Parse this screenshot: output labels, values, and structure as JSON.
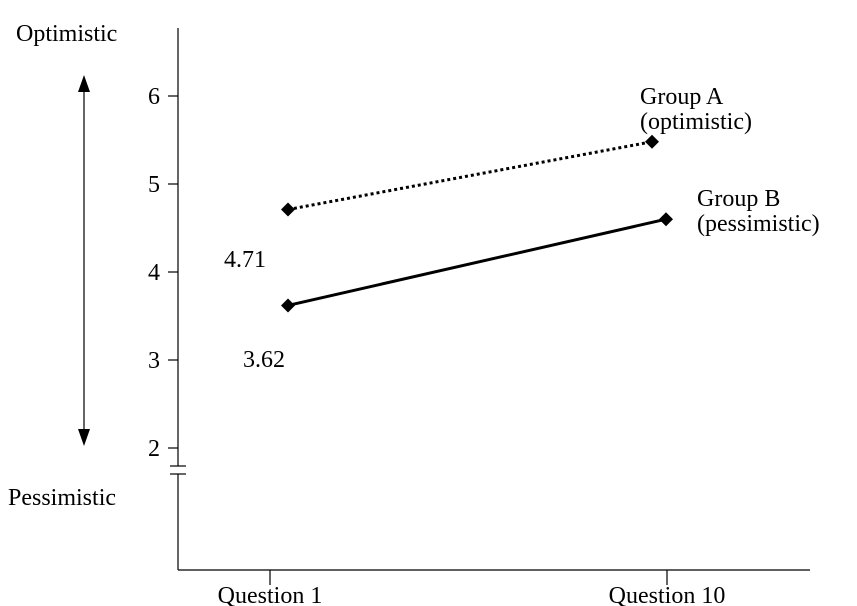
{
  "chart_data": {
    "type": "line",
    "categories": [
      "Question 1",
      "Question 10"
    ],
    "series": [
      {
        "name": "Group A (optimistic)",
        "name_lines": [
          "Group A",
          "(optimistic)"
        ],
        "values": [
          4.71,
          5.48
        ],
        "line_style": "dotted",
        "point_label": "4.71",
        "point_label_index": 0
      },
      {
        "name": "Group B (pessimistic)",
        "name_lines": [
          "Group B",
          "(pessimistic)"
        ],
        "values": [
          3.62,
          4.6
        ],
        "line_style": "solid",
        "point_label": "3.62",
        "point_label_index": 0
      }
    ],
    "yticks": [
      6,
      5,
      4,
      3,
      2
    ],
    "ylim": [
      2,
      6
    ],
    "scale_top_label": "Optimistic",
    "scale_bottom_label": "Pessimistic",
    "grid": false,
    "marker": "diamond",
    "colors": {
      "lines": "#000000"
    }
  }
}
